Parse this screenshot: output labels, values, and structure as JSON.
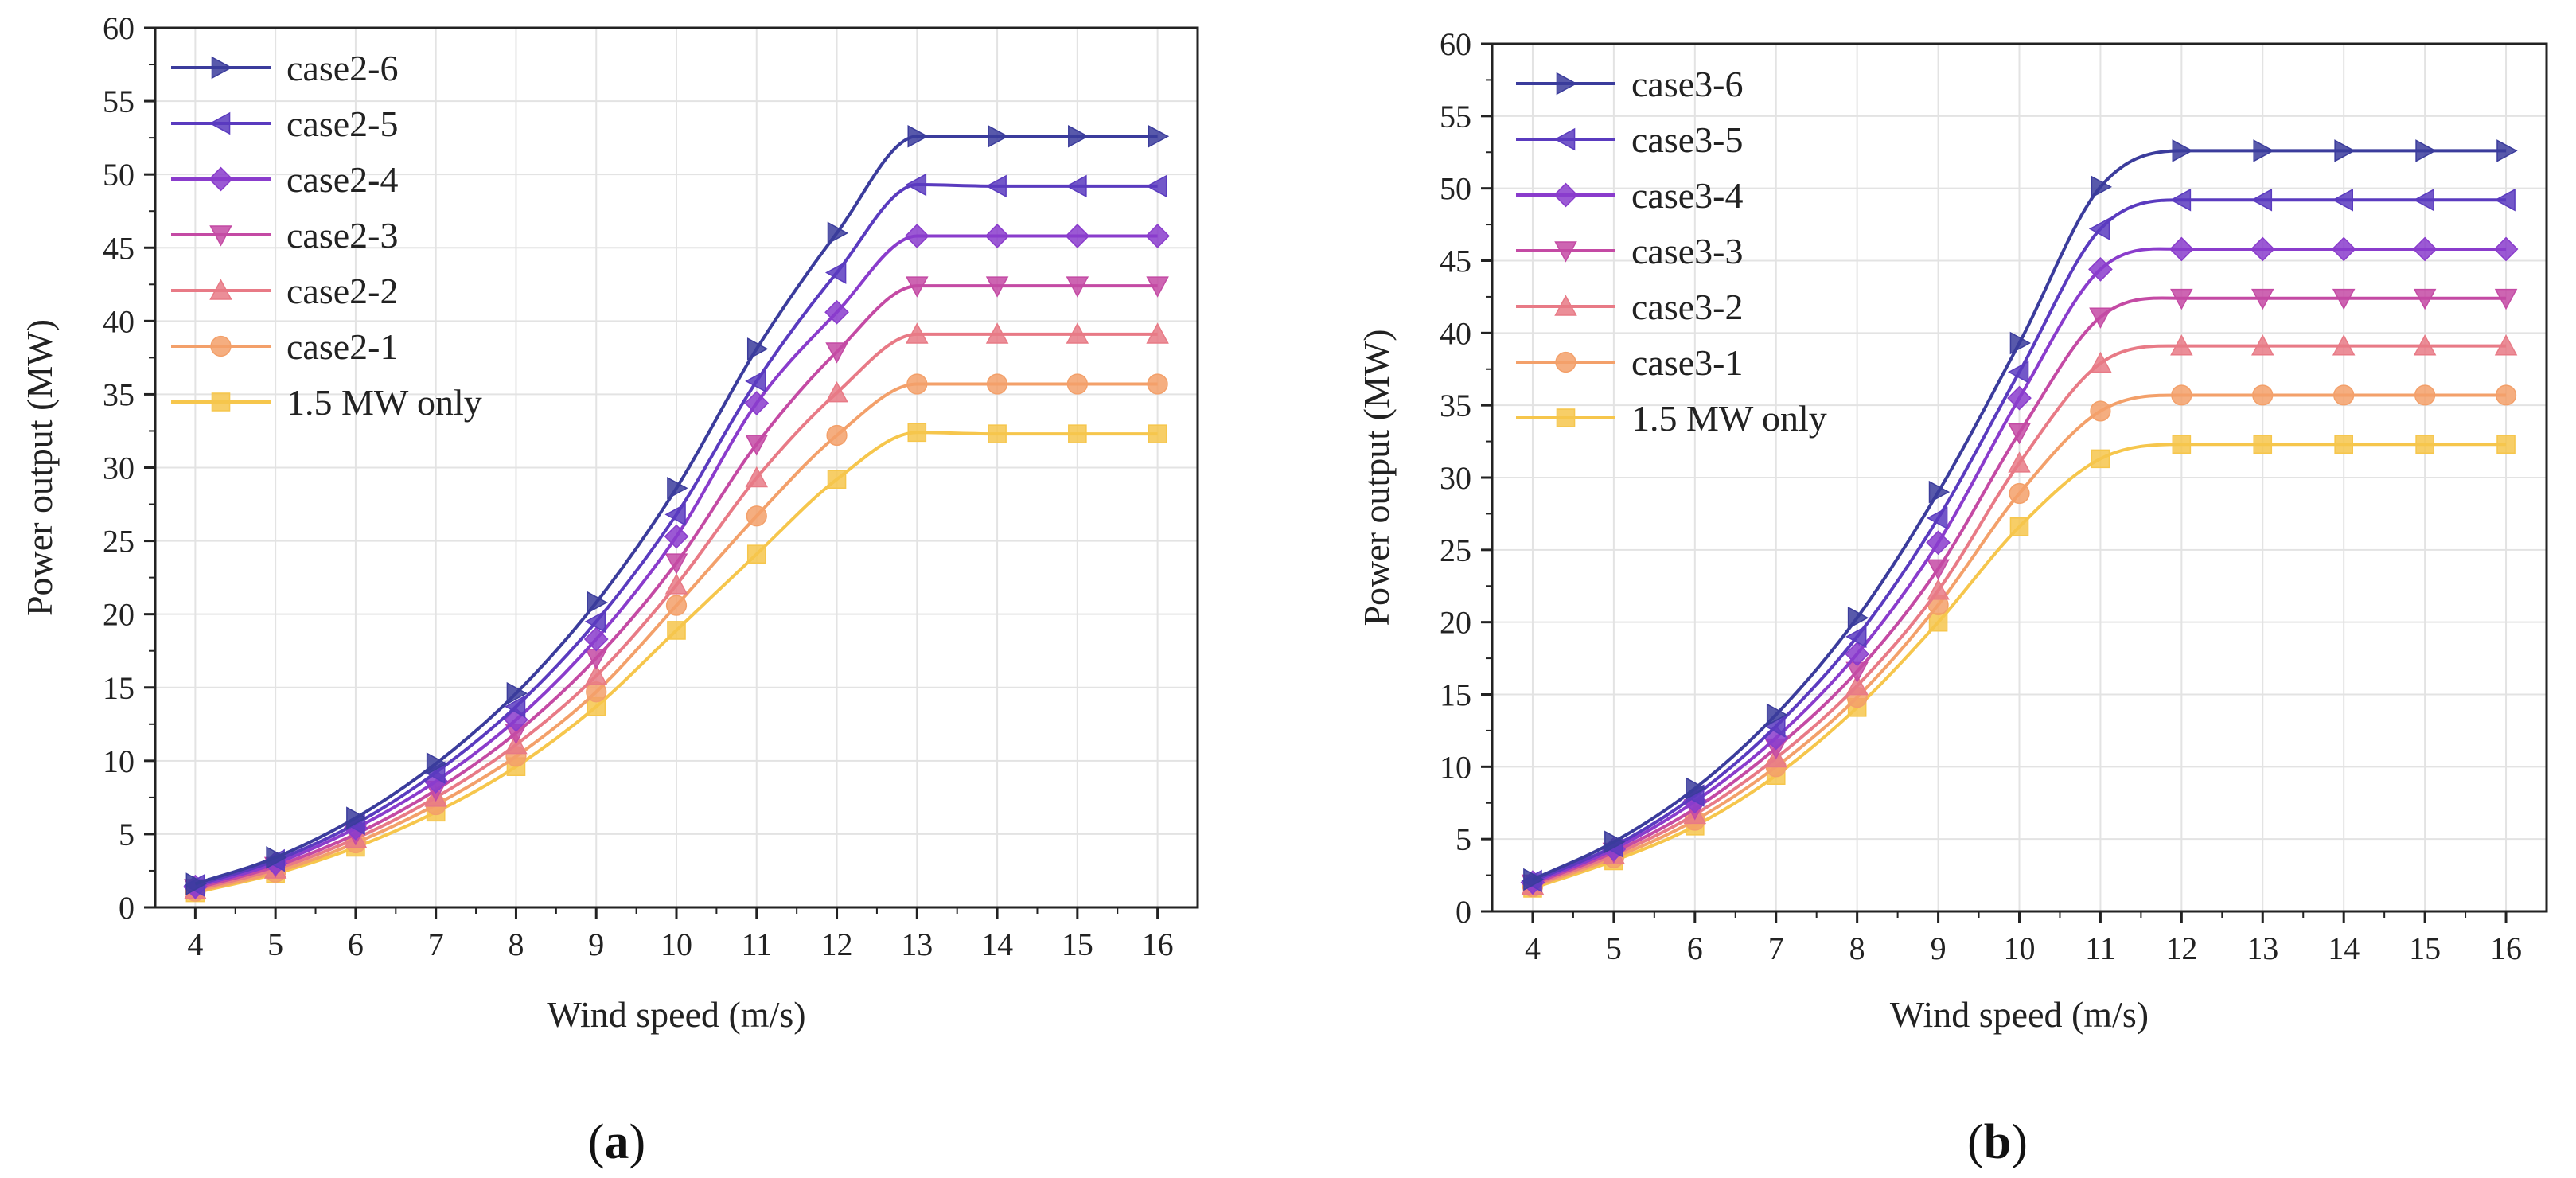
{
  "chart_data": [
    {
      "type": "line",
      "panel_label": "a",
      "title": "",
      "xlabel": "Wind speed (m/s)",
      "ylabel": "Power output (MW)",
      "xlim": [
        3.5,
        16.5
      ],
      "ylim": [
        0,
        60
      ],
      "x_ticks": [
        4,
        5,
        6,
        7,
        8,
        9,
        10,
        11,
        12,
        13,
        14,
        15,
        16
      ],
      "y_ticks": [
        0,
        5,
        10,
        15,
        20,
        25,
        30,
        35,
        40,
        45,
        50,
        55,
        60
      ],
      "grid": true,
      "legend_position": "top-left",
      "x": [
        4,
        5,
        6,
        7,
        8,
        9,
        10,
        11,
        12,
        13,
        14,
        15,
        16
      ],
      "series": [
        {
          "name": "case2-6",
          "color": "#3b3c9c",
          "marker": "triangle-right",
          "values": [
            1.6,
            3.4,
            6.1,
            9.8,
            14.6,
            20.8,
            28.6,
            38.1,
            46.0,
            52.6,
            52.6,
            52.6,
            52.6
          ]
        },
        {
          "name": "case2-5",
          "color": "#5a3bbf",
          "marker": "triangle-left",
          "values": [
            1.5,
            3.2,
            5.7,
            9.2,
            13.7,
            19.5,
            26.8,
            35.9,
            43.3,
            49.3,
            49.2,
            49.2,
            49.2
          ]
        },
        {
          "name": "case2-4",
          "color": "#8a3ccc",
          "marker": "diamond",
          "values": [
            1.4,
            3.0,
            5.4,
            8.6,
            12.8,
            18.3,
            25.3,
            34.4,
            40.6,
            45.8,
            45.8,
            45.8,
            45.8
          ]
        },
        {
          "name": "case2-3",
          "color": "#c44aa4",
          "marker": "triangle-down",
          "values": [
            1.3,
            2.8,
            5.0,
            8.0,
            11.9,
            17.0,
            23.5,
            31.6,
            37.9,
            42.4,
            42.4,
            42.4,
            42.4
          ]
        },
        {
          "name": "case2-2",
          "color": "#e87a86",
          "marker": "triangle-up",
          "values": [
            1.2,
            2.6,
            4.7,
            7.5,
            11.1,
            15.8,
            22.0,
            29.3,
            35.1,
            39.1,
            39.1,
            39.1,
            39.1
          ]
        },
        {
          "name": "case2-1",
          "color": "#f3a06a",
          "marker": "circle",
          "values": [
            1.1,
            2.4,
            4.4,
            7.0,
            10.3,
            14.7,
            20.6,
            26.7,
            32.2,
            35.7,
            35.7,
            35.7,
            35.7
          ]
        },
        {
          "name": "1.5 MW only",
          "color": "#f6c64c",
          "marker": "square",
          "values": [
            1.0,
            2.3,
            4.1,
            6.5,
            9.6,
            13.7,
            18.9,
            24.1,
            29.2,
            32.4,
            32.3,
            32.3,
            32.3
          ]
        }
      ]
    },
    {
      "type": "line",
      "panel_label": "b",
      "title": "",
      "xlabel": "Wind speed (m/s)",
      "ylabel": "Power output (MW)",
      "xlim": [
        3.5,
        16.5
      ],
      "ylim": [
        0,
        60
      ],
      "x_ticks": [
        4,
        5,
        6,
        7,
        8,
        9,
        10,
        11,
        12,
        13,
        14,
        15,
        16
      ],
      "y_ticks": [
        0,
        5,
        10,
        15,
        20,
        25,
        30,
        35,
        40,
        45,
        50,
        55,
        60
      ],
      "grid": true,
      "legend_position": "top-left",
      "x": [
        4,
        5,
        6,
        7,
        8,
        9,
        10,
        11,
        12,
        13,
        14,
        15,
        16
      ],
      "series": [
        {
          "name": "case3-6",
          "color": "#3b3c9c",
          "marker": "triangle-right",
          "values": [
            2.2,
            4.8,
            8.5,
            13.6,
            20.3,
            29.0,
            39.3,
            50.1,
            52.6,
            52.6,
            52.6,
            52.6,
            52.6
          ]
        },
        {
          "name": "case3-5",
          "color": "#5a3bbf",
          "marker": "triangle-left",
          "values": [
            2.1,
            4.5,
            8.0,
            12.8,
            19.0,
            27.2,
            37.3,
            47.2,
            49.2,
            49.2,
            49.2,
            49.2,
            49.2
          ]
        },
        {
          "name": "case3-4",
          "color": "#8a3ccc",
          "marker": "diamond",
          "values": [
            2.0,
            4.3,
            7.6,
            12.0,
            17.8,
            25.5,
            35.5,
            44.4,
            45.8,
            45.8,
            45.8,
            45.8,
            45.8
          ]
        },
        {
          "name": "case3-3",
          "color": "#c44aa4",
          "marker": "triangle-down",
          "values": [
            1.9,
            4.1,
            7.1,
            11.3,
            16.6,
            23.7,
            33.1,
            41.1,
            42.4,
            42.4,
            42.4,
            42.4,
            42.4
          ]
        },
        {
          "name": "case3-2",
          "color": "#e87a86",
          "marker": "triangle-up",
          "values": [
            1.8,
            3.9,
            6.7,
            10.6,
            15.6,
            22.2,
            31.0,
            37.9,
            39.1,
            39.1,
            39.1,
            39.1,
            39.1
          ]
        },
        {
          "name": "case3-1",
          "color": "#f3a06a",
          "marker": "circle",
          "values": [
            1.7,
            3.7,
            6.3,
            10.0,
            14.8,
            21.2,
            28.9,
            34.6,
            35.7,
            35.7,
            35.7,
            35.7,
            35.7
          ]
        },
        {
          "name": "1.5 MW only",
          "color": "#f6c64c",
          "marker": "square",
          "values": [
            1.6,
            3.5,
            5.9,
            9.4,
            14.1,
            20.0,
            26.6,
            31.3,
            32.3,
            32.3,
            32.3,
            32.3,
            32.3
          ]
        }
      ]
    }
  ]
}
